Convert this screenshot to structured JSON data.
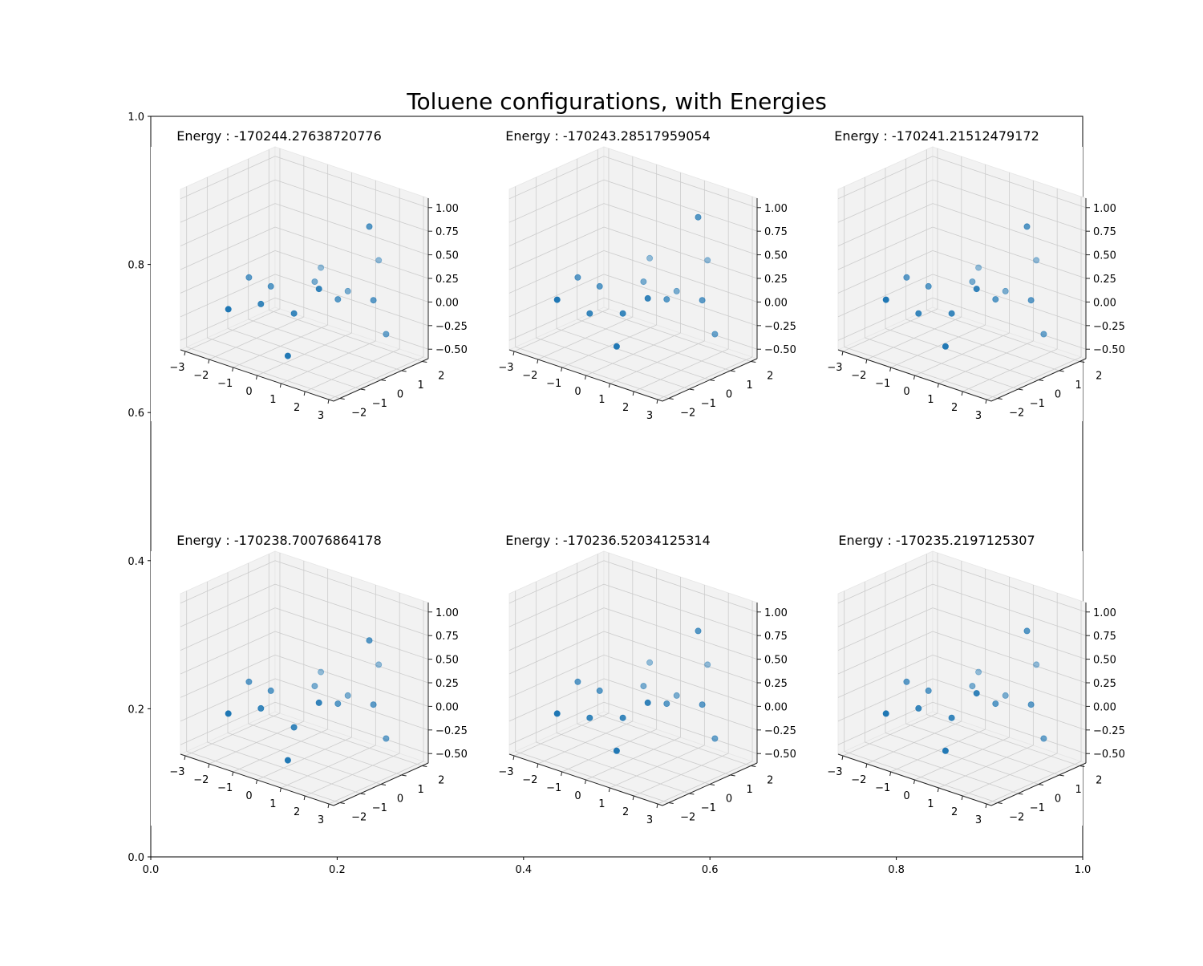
{
  "figure": {
    "suptitle": "Toluene configurations, with Energies"
  },
  "background_axes": {
    "xticks": [
      "0.0",
      "0.2",
      "0.4",
      "0.6",
      "0.8",
      "1.0"
    ],
    "yticks": [
      "0.0",
      "0.2",
      "0.4",
      "0.6",
      "0.8",
      "1.0"
    ],
    "xlim": [
      0,
      1
    ],
    "ylim": [
      0,
      1
    ]
  },
  "colors": {
    "point": "#1f77b4",
    "pane": "#f2f2f2",
    "grid": "#cccccc",
    "axis_line": "#000000"
  },
  "chart_data": [
    {
      "type": "scatter",
      "projection": "3d",
      "title": "Energy : -170244.27638720776",
      "xticks": [
        "−3",
        "−2",
        "−1",
        "0",
        "1",
        "2",
        "3"
      ],
      "yticks": [
        "−2",
        "−1",
        "0",
        "1",
        "2"
      ],
      "zticks": [
        "−0.50",
        "−0.25",
        "0.00",
        "0.25",
        "0.50",
        "0.75",
        "1.00"
      ],
      "xlim": [
        -3.2,
        3.2
      ],
      "ylim": [
        -2.3,
        2.3
      ],
      "zlim": [
        -0.6,
        1.1
      ],
      "grid": true,
      "points": [
        [
          2.8,
          -0.1,
          1.0
        ],
        [
          1.4,
          0.0,
          0.1
        ],
        [
          0.6,
          -1.2,
          0.0
        ],
        [
          -0.7,
          -1.3,
          0.0
        ],
        [
          -1.4,
          0.0,
          0.0
        ],
        [
          -0.6,
          1.2,
          0.0
        ],
        [
          0.7,
          1.3,
          0.0
        ],
        [
          1.9,
          -1.5,
          0.4
        ],
        [
          1.2,
          -2.2,
          -0.3
        ],
        [
          -1.2,
          -2.3,
          0.0
        ],
        [
          -2.4,
          0.1,
          0.0
        ],
        [
          -1.2,
          2.2,
          0.0
        ],
        [
          1.3,
          2.1,
          0.3
        ],
        [
          2.9,
          0.6,
          -0.2
        ],
        [
          2.8,
          0.1,
          0.2
        ]
      ]
    },
    {
      "type": "scatter",
      "projection": "3d",
      "title": "Energy : -170243.28517959054",
      "xticks": [
        "−3",
        "−2",
        "−1",
        "0",
        "1",
        "2",
        "3"
      ],
      "yticks": [
        "−2",
        "−1",
        "0",
        "1",
        "2"
      ],
      "zticks": [
        "−0.50",
        "−0.25",
        "0.00",
        "0.25",
        "0.50",
        "0.75",
        "1.00"
      ],
      "xlim": [
        -3.2,
        3.2
      ],
      "ylim": [
        -2.3,
        2.3
      ],
      "zlim": [
        -0.6,
        1.1
      ],
      "grid": true,
      "points": [
        [
          2.8,
          -0.1,
          1.1
        ],
        [
          1.4,
          0.0,
          0.1
        ],
        [
          0.6,
          -1.2,
          0.0
        ],
        [
          -0.7,
          -1.3,
          -0.1
        ],
        [
          -1.4,
          0.0,
          0.0
        ],
        [
          -0.6,
          1.2,
          0.0
        ],
        [
          0.7,
          1.3,
          0.0
        ],
        [
          1.9,
          -1.5,
          0.3
        ],
        [
          1.2,
          -2.2,
          -0.2
        ],
        [
          -1.2,
          -2.3,
          0.1
        ],
        [
          -2.4,
          0.1,
          0.0
        ],
        [
          -1.2,
          2.2,
          0.1
        ],
        [
          1.3,
          2.1,
          0.3
        ],
        [
          2.9,
          0.6,
          -0.2
        ],
        [
          2.8,
          0.1,
          0.2
        ]
      ]
    },
    {
      "type": "scatter",
      "projection": "3d",
      "title": "Energy : -170241.21512479172",
      "xticks": [
        "−3",
        "−2",
        "−1",
        "0",
        "1",
        "2",
        "3"
      ],
      "yticks": [
        "−2",
        "−1",
        "0",
        "1",
        "2"
      ],
      "zticks": [
        "−0.50",
        "−0.25",
        "0.00",
        "0.25",
        "0.50",
        "0.75",
        "1.00"
      ],
      "xlim": [
        -3.2,
        3.2
      ],
      "ylim": [
        -2.3,
        2.3
      ],
      "zlim": [
        -0.6,
        1.1
      ],
      "grid": true,
      "points": [
        [
          2.8,
          -0.1,
          1.0
        ],
        [
          1.4,
          0.0,
          0.1
        ],
        [
          0.6,
          -1.2,
          0.0
        ],
        [
          -0.7,
          -1.3,
          -0.1
        ],
        [
          -1.4,
          0.0,
          0.0
        ],
        [
          -0.6,
          1.2,
          0.0
        ],
        [
          0.7,
          1.3,
          0.0
        ],
        [
          1.9,
          -1.5,
          0.4
        ],
        [
          1.2,
          -2.2,
          -0.2
        ],
        [
          -1.2,
          -2.3,
          0.1
        ],
        [
          -2.4,
          0.1,
          0.0
        ],
        [
          -1.2,
          2.2,
          0.0
        ],
        [
          1.3,
          2.1,
          0.3
        ],
        [
          2.9,
          0.6,
          -0.2
        ],
        [
          2.8,
          0.1,
          0.2
        ]
      ]
    },
    {
      "type": "scatter",
      "projection": "3d",
      "title": "Energy : -170238.70076864178",
      "xticks": [
        "−3",
        "−2",
        "−1",
        "0",
        "1",
        "2",
        "3"
      ],
      "yticks": [
        "−2",
        "−1",
        "0",
        "1",
        "2"
      ],
      "zticks": [
        "−0.50",
        "−0.25",
        "0.00",
        "0.25",
        "0.50",
        "0.75",
        "1.00"
      ],
      "xlim": [
        -3.2,
        3.2
      ],
      "ylim": [
        -2.3,
        2.3
      ],
      "zlim": [
        -0.6,
        1.1
      ],
      "grid": true,
      "points": [
        [
          2.8,
          -0.1,
          0.9
        ],
        [
          1.4,
          0.0,
          0.1
        ],
        [
          0.6,
          -1.2,
          -0.1
        ],
        [
          -0.7,
          -1.3,
          0.0
        ],
        [
          -1.4,
          0.0,
          0.0
        ],
        [
          -0.6,
          1.2,
          0.0
        ],
        [
          0.7,
          1.3,
          0.0
        ],
        [
          1.9,
          -1.5,
          0.3
        ],
        [
          1.2,
          -2.2,
          -0.3
        ],
        [
          -1.2,
          -2.3,
          0.0
        ],
        [
          -2.4,
          0.1,
          0.0
        ],
        [
          -1.2,
          2.2,
          0.0
        ],
        [
          1.3,
          2.1,
          0.3
        ],
        [
          2.9,
          0.6,
          -0.2
        ],
        [
          2.8,
          0.1,
          0.2
        ]
      ]
    },
    {
      "type": "scatter",
      "projection": "3d",
      "title": "Energy : -170236.52034125314",
      "xticks": [
        "−3",
        "−2",
        "−1",
        "0",
        "1",
        "2",
        "3"
      ],
      "yticks": [
        "−2",
        "−1",
        "0",
        "1",
        "2"
      ],
      "zticks": [
        "−0.50",
        "−0.25",
        "0.00",
        "0.25",
        "0.50",
        "0.75",
        "1.00"
      ],
      "xlim": [
        -3.2,
        3.2
      ],
      "ylim": [
        -2.3,
        2.3
      ],
      "zlim": [
        -0.6,
        1.1
      ],
      "grid": true,
      "points": [
        [
          2.8,
          -0.1,
          1.0
        ],
        [
          1.4,
          0.0,
          0.1
        ],
        [
          0.6,
          -1.2,
          0.0
        ],
        [
          -0.7,
          -1.3,
          -0.1
        ],
        [
          -1.4,
          0.0,
          0.0
        ],
        [
          -0.6,
          1.2,
          0.0
        ],
        [
          0.7,
          1.3,
          0.0
        ],
        [
          1.9,
          -1.5,
          0.3
        ],
        [
          1.2,
          -2.2,
          -0.2
        ],
        [
          -1.2,
          -2.3,
          0.0
        ],
        [
          -2.4,
          0.1,
          0.0
        ],
        [
          -1.2,
          2.2,
          0.1
        ],
        [
          1.3,
          2.1,
          0.3
        ],
        [
          2.9,
          0.6,
          -0.2
        ],
        [
          2.8,
          0.1,
          0.2
        ]
      ]
    },
    {
      "type": "scatter",
      "projection": "3d",
      "title": "Energy : -170235.2197125307",
      "xticks": [
        "−3",
        "−2",
        "−1",
        "0",
        "1",
        "2",
        "3"
      ],
      "yticks": [
        "−2",
        "−1",
        "0",
        "1",
        "2"
      ],
      "zticks": [
        "−0.50",
        "−0.25",
        "0.00",
        "0.25",
        "0.50",
        "0.75",
        "1.00"
      ],
      "xlim": [
        -3.2,
        3.2
      ],
      "ylim": [
        -2.3,
        2.3
      ],
      "zlim": [
        -0.6,
        1.1
      ],
      "grid": true,
      "points": [
        [
          2.8,
          -0.1,
          1.0
        ],
        [
          1.4,
          0.0,
          0.1
        ],
        [
          0.6,
          -1.2,
          0.0
        ],
        [
          -0.7,
          -1.3,
          0.0
        ],
        [
          -1.4,
          0.0,
          0.0
        ],
        [
          -0.6,
          1.2,
          0.0
        ],
        [
          0.7,
          1.3,
          0.0
        ],
        [
          1.9,
          -1.5,
          0.4
        ],
        [
          1.2,
          -2.2,
          -0.2
        ],
        [
          -1.2,
          -2.3,
          0.0
        ],
        [
          -2.4,
          0.1,
          0.0
        ],
        [
          -1.2,
          2.2,
          0.0
        ],
        [
          1.3,
          2.1,
          0.3
        ],
        [
          2.9,
          0.6,
          -0.2
        ],
        [
          2.8,
          0.1,
          0.2
        ]
      ]
    }
  ]
}
